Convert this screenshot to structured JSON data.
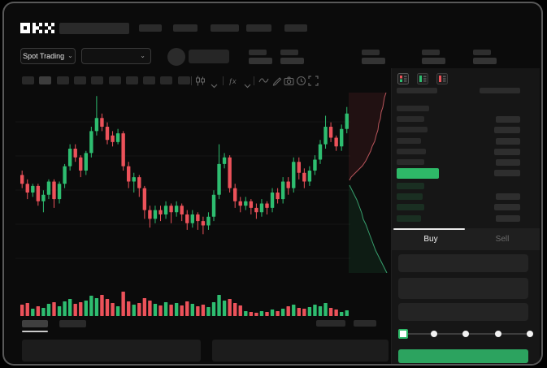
{
  "app": {
    "name": "OKX"
  },
  "header": {
    "product_selector_label": "Spot Trading",
    "nav_placeholder_count": 5,
    "stat_group_count": 5
  },
  "toolbar": {
    "timeframe_placeholder_count": 10,
    "selected_timeframe_index": 1,
    "icons": [
      "candle-style-icon",
      "chevron-down-icon",
      "indicators-icon",
      "chevron-down-icon",
      "line-style-icon",
      "draw-icon",
      "camera-icon",
      "clock-icon",
      "fullscreen-icon"
    ]
  },
  "orderbook": {
    "view_icons": [
      "book-asks-bids-icon",
      "book-bids-only-icon",
      "book-asks-only-icon"
    ],
    "ask_rows": 7,
    "bid_rows": 4
  },
  "trade_panel": {
    "tabs": [
      {
        "label": "Buy",
        "active": true
      },
      {
        "label": "Sell",
        "active": false
      }
    ],
    "input_count": 3,
    "slider_stops": 5,
    "slider_value_index": 0
  },
  "colors": {
    "up": "#2ebd70",
    "down": "#ec525a",
    "price_highlight": "#2eb968",
    "buy_button": "#2ca35f",
    "grid": "rgba(255,255,255,0.045)",
    "depth_ask_fill": "rgba(236,82,90,0.10)",
    "depth_ask_line": "rgba(240,110,118,0.75)",
    "depth_bid_fill": "rgba(46,189,112,0.10)",
    "depth_bid_line": "rgba(70,205,140,0.75)"
  },
  "chart_data": {
    "type": "candlestick",
    "title": "",
    "note": "price axis labels not visible; values normalized to 0-100 scale",
    "ylim": [
      0,
      100
    ],
    "candles": [
      [
        58,
        54,
        60,
        52
      ],
      [
        54,
        50,
        56,
        47
      ],
      [
        50,
        53,
        54,
        48
      ],
      [
        53,
        46,
        54,
        44
      ],
      [
        46,
        49,
        51,
        41
      ],
      [
        49,
        55,
        56,
        47
      ],
      [
        55,
        47,
        56,
        43
      ],
      [
        47,
        54,
        55,
        45
      ],
      [
        54,
        62,
        63,
        52
      ],
      [
        62,
        70,
        72,
        60
      ],
      [
        70,
        66,
        72,
        64
      ],
      [
        66,
        60,
        67,
        57
      ],
      [
        60,
        68,
        69,
        58
      ],
      [
        68,
        78,
        80,
        66
      ],
      [
        78,
        84,
        94,
        76
      ],
      [
        84,
        80,
        86,
        78
      ],
      [
        80,
        74,
        82,
        72
      ],
      [
        76,
        73,
        78,
        71
      ],
      [
        73,
        77,
        79,
        72
      ],
      [
        77,
        62,
        78,
        60
      ],
      [
        62,
        55,
        64,
        52
      ],
      [
        55,
        57,
        59,
        50
      ],
      [
        57,
        52,
        58,
        48
      ],
      [
        52,
        42,
        53,
        38
      ],
      [
        42,
        38,
        44,
        34
      ],
      [
        38,
        42,
        44,
        36
      ],
      [
        42,
        40,
        44,
        37
      ],
      [
        40,
        44,
        46,
        38
      ],
      [
        44,
        41,
        45,
        36
      ],
      [
        41,
        44,
        46,
        39
      ],
      [
        44,
        40,
        45,
        37
      ],
      [
        40,
        36,
        42,
        33
      ],
      [
        36,
        40,
        42,
        34
      ],
      [
        40,
        37,
        41,
        33
      ],
      [
        37,
        35,
        39,
        31
      ],
      [
        35,
        39,
        41,
        33
      ],
      [
        39,
        49,
        51,
        37
      ],
      [
        49,
        63,
        72,
        47
      ],
      [
        63,
        66,
        68,
        61
      ],
      [
        66,
        52,
        67,
        50
      ],
      [
        52,
        46,
        54,
        43
      ],
      [
        46,
        44,
        48,
        41
      ],
      [
        44,
        46,
        48,
        42
      ],
      [
        46,
        43,
        47,
        40
      ],
      [
        43,
        41,
        45,
        38
      ],
      [
        41,
        45,
        47,
        39
      ],
      [
        45,
        43,
        46,
        40
      ],
      [
        43,
        50,
        52,
        41
      ],
      [
        50,
        47,
        52,
        45
      ],
      [
        47,
        55,
        57,
        45
      ],
      [
        55,
        52,
        57,
        49
      ],
      [
        52,
        64,
        66,
        50
      ],
      [
        64,
        59,
        66,
        56
      ],
      [
        59,
        55,
        61,
        52
      ],
      [
        55,
        60,
        62,
        53
      ],
      [
        60,
        65,
        67,
        58
      ],
      [
        65,
        72,
        74,
        63
      ],
      [
        72,
        80,
        85,
        70
      ],
      [
        80,
        75,
        82,
        73
      ],
      [
        75,
        71,
        76,
        69
      ],
      [
        71,
        79,
        81,
        69
      ],
      [
        79,
        86,
        89,
        77
      ]
    ],
    "volume": [
      14,
      16,
      9,
      12,
      10,
      15,
      17,
      12,
      18,
      21,
      15,
      17,
      19,
      25,
      22,
      26,
      21,
      16,
      12,
      30,
      18,
      14,
      16,
      22,
      19,
      15,
      13,
      17,
      14,
      16,
      13,
      18,
      15,
      12,
      14,
      11,
      17,
      26,
      19,
      21,
      16,
      13,
      6,
      5,
      4,
      6,
      5,
      8,
      6,
      9,
      12,
      14,
      10,
      9,
      11,
      14,
      12,
      16,
      10,
      8,
      5,
      7
    ],
    "depth": {
      "asks": [
        [
          46,
          2
        ],
        [
          44,
          8
        ],
        [
          43,
          14
        ],
        [
          42,
          20
        ],
        [
          40,
          26
        ],
        [
          39,
          34
        ],
        [
          37,
          40
        ],
        [
          36,
          48
        ],
        [
          34,
          54
        ],
        [
          32,
          62
        ],
        [
          29,
          68
        ],
        [
          27,
          74
        ],
        [
          24,
          80
        ],
        [
          21,
          86
        ],
        [
          17,
          92
        ],
        [
          12,
          97
        ],
        [
          7,
          102
        ],
        [
          3,
          106
        ],
        [
          1,
          110
        ]
      ],
      "bids": [
        [
          1,
          116
        ],
        [
          4,
          122
        ],
        [
          7,
          128
        ],
        [
          10,
          134
        ],
        [
          13,
          142
        ],
        [
          16,
          150
        ],
        [
          18,
          158
        ],
        [
          21,
          164
        ],
        [
          24,
          172
        ],
        [
          27,
          180
        ],
        [
          30,
          188
        ],
        [
          33,
          196
        ],
        [
          36,
          202
        ],
        [
          39,
          208
        ],
        [
          42,
          214
        ],
        [
          45,
          220
        ],
        [
          47,
          224
        ]
      ]
    }
  }
}
